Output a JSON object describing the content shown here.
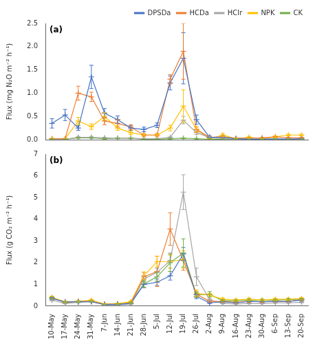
{
  "chart_data": [
    {
      "type": "line",
      "annotation": "(a)",
      "ylabel": "Flux (mg N₂O m⁻² h⁻¹)",
      "categories": [
        "10-May",
        "17-May",
        "24-May",
        "31-May",
        "7-Jun",
        "14-Jun",
        "21-Jun",
        "28-Jun",
        "5-Jul",
        "12-Jul",
        "19-Jul",
        "26-Jul",
        "2-Aug",
        "9-Aug",
        "16-Aug",
        "23-Aug",
        "30-Aug",
        "6-Sep",
        "13-Sep",
        "20-Sep"
      ],
      "series": [
        {
          "name": "DPSDa",
          "color": "#4472C4",
          "values": [
            0.35,
            0.53,
            0.25,
            1.35,
            0.57,
            0.43,
            0.25,
            0.22,
            0.31,
            1.22,
            1.75,
            0.43,
            0.05,
            0.05,
            0.02,
            0.01,
            0.01,
            0.02,
            0.01,
            0.02
          ],
          "errors": [
            0.1,
            0.12,
            0.05,
            0.25,
            0.1,
            0.08,
            0.05,
            0.05,
            0.05,
            0.15,
            0.55,
            0.1,
            0.03,
            0.02,
            0.01,
            0.01,
            0.01,
            0.01,
            0.01,
            0.01
          ]
        },
        {
          "name": "HCDa",
          "color": "#ED7D31",
          "values": [
            0.02,
            0.02,
            1.0,
            0.92,
            0.4,
            0.35,
            0.27,
            0.1,
            0.1,
            1.3,
            1.9,
            0.22,
            0.05,
            0.06,
            0.03,
            0.03,
            0.04,
            0.06,
            0.04,
            0.04
          ],
          "errors": [
            0.01,
            0.01,
            0.15,
            0.1,
            0.08,
            0.08,
            0.05,
            0.03,
            0.03,
            0.1,
            0.6,
            0.05,
            0.02,
            0.02,
            0.01,
            0.01,
            0.01,
            0.02,
            0.01,
            0.01
          ]
        },
        {
          "name": "HCIr",
          "color": "#A5A5A5",
          "values": [
            0.01,
            0.01,
            0.05,
            0.05,
            0.04,
            0.03,
            0.03,
            0.02,
            0.02,
            0.05,
            0.42,
            0.15,
            0.05,
            0.02,
            0.01,
            0.01,
            0.01,
            0.01,
            0.01,
            0.01
          ],
          "errors": [
            0.01,
            0.01,
            0.02,
            0.02,
            0.01,
            0.01,
            0.01,
            0.01,
            0.01,
            0.01,
            0.08,
            0.04,
            0.02,
            0.01,
            0.01,
            0.01,
            0.01,
            0.01,
            0.01,
            0.01
          ]
        },
        {
          "name": "NPK",
          "color": "#FFC000",
          "values": [
            0.02,
            0.02,
            0.4,
            0.28,
            0.5,
            0.25,
            0.15,
            0.1,
            0.1,
            0.25,
            0.72,
            0.22,
            0.01,
            0.1,
            0.02,
            0.05,
            0.02,
            0.06,
            0.1,
            0.1
          ],
          "errors": [
            0.01,
            0.01,
            0.08,
            0.06,
            0.08,
            0.05,
            0.04,
            0.02,
            0.02,
            0.06,
            0.35,
            0.06,
            0.01,
            0.03,
            0.01,
            0.02,
            0.01,
            0.02,
            0.02,
            0.02
          ]
        },
        {
          "name": "CK",
          "color": "#70AD47",
          "values": [
            0.01,
            0.01,
            0.04,
            0.04,
            0.02,
            0.03,
            0.03,
            0.01,
            0.01,
            0.02,
            0.03,
            0.02,
            0.01,
            0.01,
            0.01,
            0.01,
            0.01,
            0.01,
            0.01,
            0.01
          ],
          "errors": [
            0.01,
            0.01,
            0.01,
            0.01,
            0.01,
            0.01,
            0.01,
            0.01,
            0.01,
            0.01,
            0.01,
            0.01,
            0.01,
            0.01,
            0.01,
            0.01,
            0.01,
            0.01,
            0.01,
            0.01
          ]
        }
      ],
      "ylim": [
        0,
        2.5
      ],
      "yticks": [
        {
          "value": 0,
          "label": "0.0"
        },
        0.5,
        {
          "value": 1,
          "label": "1.0"
        },
        1.5,
        {
          "value": 2,
          "label": "2.0"
        },
        2.5
      ],
      "grid": false,
      "legend": "upper right",
      "marker": "+",
      "tick_labels": "y"
    },
    {
      "type": "line",
      "annotation": "(b)",
      "ylabel": "Flux (g CO₂ m⁻² h⁻¹)",
      "categories": [
        "10-May",
        "17-May",
        "24-May",
        "31-May",
        "7-Jun",
        "14-Jun",
        "21-Jun",
        "28-Jun",
        "5-Jul",
        "12-Jul",
        "19-Jul",
        "26-Jul",
        "2-Aug",
        "9-Aug",
        "16-Aug",
        "23-Aug",
        "30-Aug",
        "6-Sep",
        "13-Sep",
        "20-Sep"
      ],
      "series": [
        {
          "name": "DPSDa",
          "color": "#4472C4",
          "values": [
            0.35,
            0.2,
            0.2,
            0.2,
            0.08,
            0.08,
            0.12,
            1.0,
            1.1,
            1.4,
            2.4,
            0.45,
            0.15,
            0.2,
            0.15,
            0.22,
            0.2,
            0.22,
            0.22,
            0.28
          ],
          "errors": [
            0.05,
            0.03,
            0.03,
            0.03,
            0.02,
            0.02,
            0.03,
            0.15,
            0.15,
            0.2,
            0.3,
            0.1,
            0.03,
            0.04,
            0.03,
            0.04,
            0.03,
            0.03,
            0.03,
            0.04
          ]
        },
        {
          "name": "HCDa",
          "color": "#ED7D31",
          "values": [
            0.38,
            0.18,
            0.22,
            0.22,
            0.08,
            0.08,
            0.15,
            1.35,
            1.6,
            3.55,
            2.1,
            0.55,
            0.22,
            0.22,
            0.18,
            0.22,
            0.2,
            0.22,
            0.22,
            0.3
          ],
          "errors": [
            0.05,
            0.03,
            0.03,
            0.03,
            0.02,
            0.02,
            0.03,
            0.2,
            0.7,
            0.75,
            0.45,
            0.12,
            0.04,
            0.04,
            0.03,
            0.04,
            0.03,
            0.03,
            0.03,
            0.04
          ]
        },
        {
          "name": "HCIr",
          "color": "#A5A5A5",
          "values": [
            0.28,
            0.12,
            0.18,
            0.22,
            0.06,
            0.06,
            0.1,
            1.25,
            1.55,
            2.1,
            5.25,
            1.35,
            0.3,
            0.12,
            0.1,
            0.12,
            0.12,
            0.15,
            0.15,
            0.18
          ],
          "errors": [
            0.04,
            0.02,
            0.03,
            0.03,
            0.01,
            0.01,
            0.02,
            0.15,
            0.2,
            0.35,
            0.8,
            0.4,
            0.06,
            0.02,
            0.02,
            0.02,
            0.02,
            0.02,
            0.02,
            0.03
          ]
        },
        {
          "name": "NPK",
          "color": "#FFC000",
          "values": [
            0.4,
            0.2,
            0.22,
            0.28,
            0.1,
            0.12,
            0.2,
            1.4,
            2.05,
            2.05,
            2.15,
            0.6,
            0.5,
            0.32,
            0.28,
            0.32,
            0.28,
            0.32,
            0.32,
            0.35
          ],
          "errors": [
            0.06,
            0.03,
            0.03,
            0.04,
            0.02,
            0.02,
            0.04,
            0.18,
            0.25,
            0.3,
            0.4,
            0.15,
            0.08,
            0.06,
            0.04,
            0.05,
            0.04,
            0.05,
            0.05,
            0.05
          ]
        },
        {
          "name": "CK",
          "color": "#70AD47",
          "values": [
            0.38,
            0.18,
            0.2,
            0.22,
            0.08,
            0.1,
            0.15,
            1.02,
            1.35,
            2.0,
            2.45,
            0.52,
            0.55,
            0.25,
            0.25,
            0.28,
            0.28,
            0.28,
            0.3,
            0.32
          ],
          "errors": [
            0.05,
            0.02,
            0.03,
            0.03,
            0.01,
            0.02,
            0.03,
            0.15,
            0.2,
            0.4,
            0.65,
            0.12,
            0.12,
            0.05,
            0.04,
            0.05,
            0.04,
            0.04,
            0.05,
            0.04
          ]
        }
      ],
      "ylim": [
        0,
        7
      ],
      "yticks": [
        0,
        1,
        2,
        3,
        4,
        5,
        6,
        7
      ],
      "grid": false,
      "marker": "+"
    }
  ]
}
